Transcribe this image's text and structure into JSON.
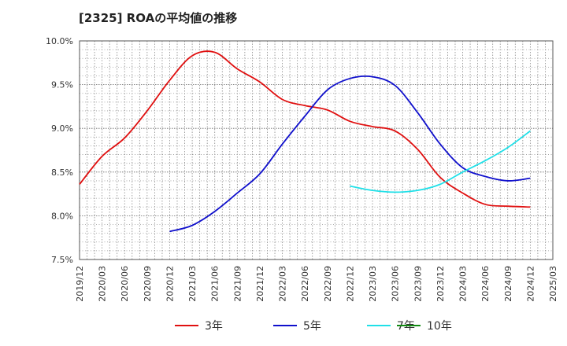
{
  "chart_data": {
    "type": "line",
    "title": "[2325]  ROAの平均値の推移",
    "xlabel": "",
    "ylabel": "",
    "ylim": [
      7.5,
      10.0
    ],
    "xlim": [
      "2019/12",
      "2025/03"
    ],
    "grid": true,
    "legend": "bottom",
    "y_ticks": [
      "7.5%",
      "8.0%",
      "8.5%",
      "9.0%",
      "9.5%",
      "10.0%"
    ],
    "x_ticks": [
      "2019/12",
      "2020/03",
      "2020/06",
      "2020/09",
      "2020/12",
      "2021/03",
      "2021/06",
      "2021/09",
      "2021/12",
      "2022/03",
      "2022/06",
      "2022/09",
      "2022/12",
      "2023/03",
      "2023/06",
      "2023/09",
      "2023/12",
      "2024/03",
      "2024/06",
      "2024/09",
      "2024/12",
      "2025/03"
    ],
    "series": [
      {
        "name": "3年",
        "color": "#e01010",
        "x": [
          "2019/12",
          "2020/03",
          "2020/06",
          "2020/09",
          "2020/12",
          "2021/03",
          "2021/06",
          "2021/09",
          "2021/12",
          "2022/03",
          "2022/06",
          "2022/09",
          "2022/12",
          "2023/03",
          "2023/06",
          "2023/09",
          "2023/12",
          "2024/03",
          "2024/06",
          "2024/09",
          "2024/12"
        ],
        "values": [
          8.36,
          8.68,
          8.89,
          9.2,
          9.55,
          9.83,
          9.87,
          9.68,
          9.53,
          9.33,
          9.26,
          9.21,
          9.08,
          9.02,
          8.97,
          8.76,
          8.44,
          8.26,
          8.13,
          8.11,
          8.1
        ]
      },
      {
        "name": "5年",
        "color": "#1010cc",
        "x": [
          "2020/12",
          "2021/03",
          "2021/06",
          "2021/09",
          "2021/12",
          "2022/03",
          "2022/06",
          "2022/09",
          "2022/12",
          "2023/03",
          "2023/06",
          "2023/09",
          "2023/12",
          "2024/03",
          "2024/06",
          "2024/09",
          "2024/12"
        ],
        "values": [
          7.82,
          7.89,
          8.05,
          8.26,
          8.48,
          8.82,
          9.14,
          9.44,
          9.57,
          9.59,
          9.49,
          9.18,
          8.82,
          8.55,
          8.45,
          8.4,
          8.43
        ]
      },
      {
        "name": "7年",
        "color": "#20e0e8",
        "x": [
          "2022/12",
          "2023/03",
          "2023/06",
          "2023/09",
          "2023/12",
          "2024/03",
          "2024/06",
          "2024/09",
          "2024/12"
        ],
        "values": [
          8.34,
          8.29,
          8.27,
          8.29,
          8.36,
          8.5,
          8.63,
          8.78,
          8.97
        ]
      },
      {
        "name": "10年",
        "color": "#128a12",
        "x": [],
        "values": []
      }
    ]
  }
}
